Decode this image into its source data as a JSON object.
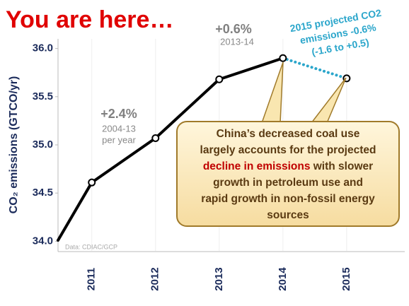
{
  "chart_data": {
    "type": "line",
    "title": "You are here…",
    "y_label": "CO₂ emissions (GTCO/yr)",
    "source": "Data: CDIAC/GCP",
    "xlim": [
      2010.47,
      2015.89
    ],
    "xticks": [
      2011,
      2012,
      2013,
      2014,
      2015
    ],
    "ylim": [
      33.9,
      36.1
    ],
    "yticks": [
      {
        "value": 36,
        "label": "36.0"
      },
      {
        "value": 35.5,
        "label": "35.5"
      },
      {
        "value": 35,
        "label": "35.0"
      },
      {
        "value": 34.5,
        "label": "34.5"
      },
      {
        "value": 34,
        "label": "34.0"
      }
    ],
    "series": [
      {
        "x": [
          2010.47,
          2011,
          2012,
          2013,
          2014
        ],
        "values": [
          34.01,
          34.61,
          35.07,
          35.68,
          35.9
        ],
        "color": "#000000",
        "style": "solid",
        "markers": [
          false,
          true,
          true,
          true,
          true
        ]
      },
      {
        "x": [
          2014,
          2015
        ],
        "values": [
          35.9,
          35.69
        ],
        "color": "#2ba6cb",
        "style": "dotted",
        "markers": [
          false,
          true
        ]
      }
    ],
    "annotations": {
      "growth_long": "+2.4%",
      "growth_long_period": "2004-13",
      "growth_long_unit": "per year",
      "growth_short": "+0.6%",
      "growth_short_period": "2013-14",
      "projection": [
        "2015 projected CO2",
        "emissions -0.6%",
        "(-1.6 to +0.5)"
      ]
    },
    "callout": [
      [
        {
          "text": "China’s decreased coal use",
          "color": "#5a3a12"
        }
      ],
      [
        {
          "text": "largely accounts for the projected",
          "color": "#5a3a12"
        }
      ],
      [
        {
          "text": "decline in emissions",
          "color": "#c00000"
        },
        {
          "text": " with slower",
          "color": "#5a3a12"
        }
      ],
      [
        {
          "text": "growth in petroleum use and",
          "color": "#5a3a12"
        }
      ],
      [
        {
          "text": "rapid growth in non-fossil energy",
          "color": "#5a3a12"
        }
      ],
      [
        {
          "text": "sources",
          "color": "#5a3a12"
        }
      ]
    ]
  }
}
